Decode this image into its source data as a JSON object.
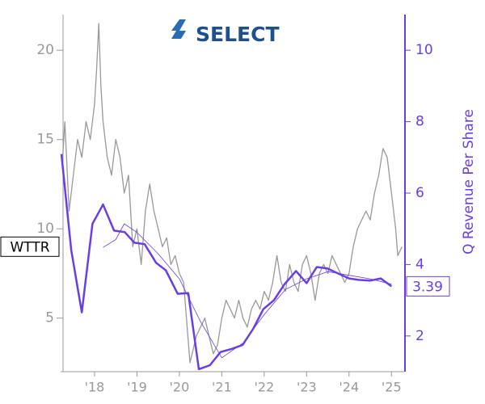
{
  "logo": "SELECT",
  "chart_data": {
    "type": "line",
    "ticker": "WTTR",
    "last_value": 3.39,
    "y2label": "Q Revenue Per Share",
    "xlim": [
      2017.2,
      2025.3
    ],
    "xticks": [
      {
        "value": 2018,
        "label": "'18"
      },
      {
        "value": 2019,
        "label": "'19"
      },
      {
        "value": 2020,
        "label": "'20"
      },
      {
        "value": 2021,
        "label": "'21"
      },
      {
        "value": 2022,
        "label": "'22"
      },
      {
        "value": 2023,
        "label": "'23"
      },
      {
        "value": 2024,
        "label": "'24"
      },
      {
        "value": 2025,
        "label": "'25"
      }
    ],
    "ylim": [
      2,
      22
    ],
    "yticks": [
      5,
      10,
      15,
      20
    ],
    "y2lim": [
      1,
      11
    ],
    "y2ticks": [
      2,
      4,
      6,
      8,
      10
    ],
    "series": [
      {
        "axis": "y",
        "color": "#999999",
        "width": 1.3,
        "x": [
          2017.25,
          2017.3,
          2017.4,
          2017.5,
          2017.6,
          2017.7,
          2017.8,
          2017.9,
          2018.0,
          2018.05,
          2018.1,
          2018.15,
          2018.2,
          2018.3,
          2018.4,
          2018.5,
          2018.6,
          2018.7,
          2018.8,
          2018.9,
          2019.0,
          2019.1,
          2019.2,
          2019.3,
          2019.4,
          2019.5,
          2019.6,
          2019.7,
          2019.8,
          2019.9,
          2020.0,
          2020.1,
          2020.2,
          2020.25,
          2020.3,
          2020.4,
          2020.5,
          2020.6,
          2020.7,
          2020.8,
          2020.9,
          2021.0,
          2021.1,
          2021.2,
          2021.3,
          2021.4,
          2021.5,
          2021.6,
          2021.7,
          2021.8,
          2021.9,
          2022.0,
          2022.1,
          2022.2,
          2022.3,
          2022.4,
          2022.5,
          2022.6,
          2022.7,
          2022.8,
          2022.9,
          2023.0,
          2023.1,
          2023.2,
          2023.3,
          2023.4,
          2023.5,
          2023.6,
          2023.7,
          2023.8,
          2023.9,
          2024.0,
          2024.1,
          2024.2,
          2024.3,
          2024.4,
          2024.5,
          2024.6,
          2024.7,
          2024.8,
          2024.9,
          2025.0,
          2025.1,
          2025.15,
          2025.25
        ],
        "values": [
          14,
          16,
          11,
          13,
          15,
          14,
          16,
          15,
          17,
          19,
          21.5,
          18,
          16,
          14,
          13,
          15,
          14,
          12,
          13,
          9,
          10,
          8,
          11,
          12.5,
          11,
          10,
          9,
          9.5,
          8,
          8.5,
          7.5,
          7,
          4,
          2.5,
          3,
          4,
          4.5,
          5,
          4,
          3,
          3.5,
          5,
          6,
          5.5,
          5,
          6,
          5,
          4.5,
          5.5,
          6,
          5.5,
          6.5,
          6,
          7,
          8.5,
          7,
          6.5,
          8,
          7,
          6.5,
          8,
          8.5,
          7.5,
          6,
          7.5,
          8,
          7.5,
          8.5,
          8,
          7.5,
          7,
          7.5,
          9,
          10,
          10.5,
          11,
          10.5,
          12,
          13,
          14.5,
          14,
          12,
          10,
          8.5,
          9
        ]
      },
      {
        "axis": "y2",
        "color": "#6a3de8",
        "width": 2.5,
        "x": [
          2017.22,
          2017.45,
          2017.7,
          2017.95,
          2018.2,
          2018.46,
          2018.71,
          2018.94,
          2019.18,
          2019.45,
          2019.68,
          2019.96,
          2020.21,
          2020.46,
          2020.72,
          2020.97,
          2021.24,
          2021.49,
          2021.74,
          2021.98,
          2022.23,
          2022.48,
          2022.75,
          2023.0,
          2023.24,
          2023.49,
          2023.74,
          2024.0,
          2024.23,
          2024.5,
          2024.75,
          2025.0
        ],
        "values": [
          7.09,
          4.41,
          2.66,
          5.14,
          5.68,
          4.95,
          4.91,
          4.61,
          4.57,
          4.05,
          3.84,
          3.18,
          3.2,
          1.07,
          1.18,
          1.55,
          1.64,
          1.75,
          2.2,
          2.75,
          3.0,
          3.45,
          3.82,
          3.48,
          3.93,
          3.89,
          3.75,
          3.61,
          3.57,
          3.55,
          3.61,
          3.39
        ]
      },
      {
        "axis": "y2",
        "color": "#6a3de8",
        "width": 0.8,
        "x": [
          2018.2,
          2018.5,
          2018.7,
          2019.0,
          2019.5,
          2020.0,
          2020.5,
          2021.0,
          2021.5,
          2022.0,
          2022.5,
          2023.0,
          2023.5,
          2024.0,
          2024.5,
          2025.0
        ],
        "values": [
          4.48,
          4.7,
          5.14,
          4.9,
          4.3,
          3.6,
          2.4,
          1.39,
          1.8,
          2.6,
          3.3,
          3.6,
          3.8,
          3.7,
          3.6,
          3.45
        ]
      }
    ]
  }
}
